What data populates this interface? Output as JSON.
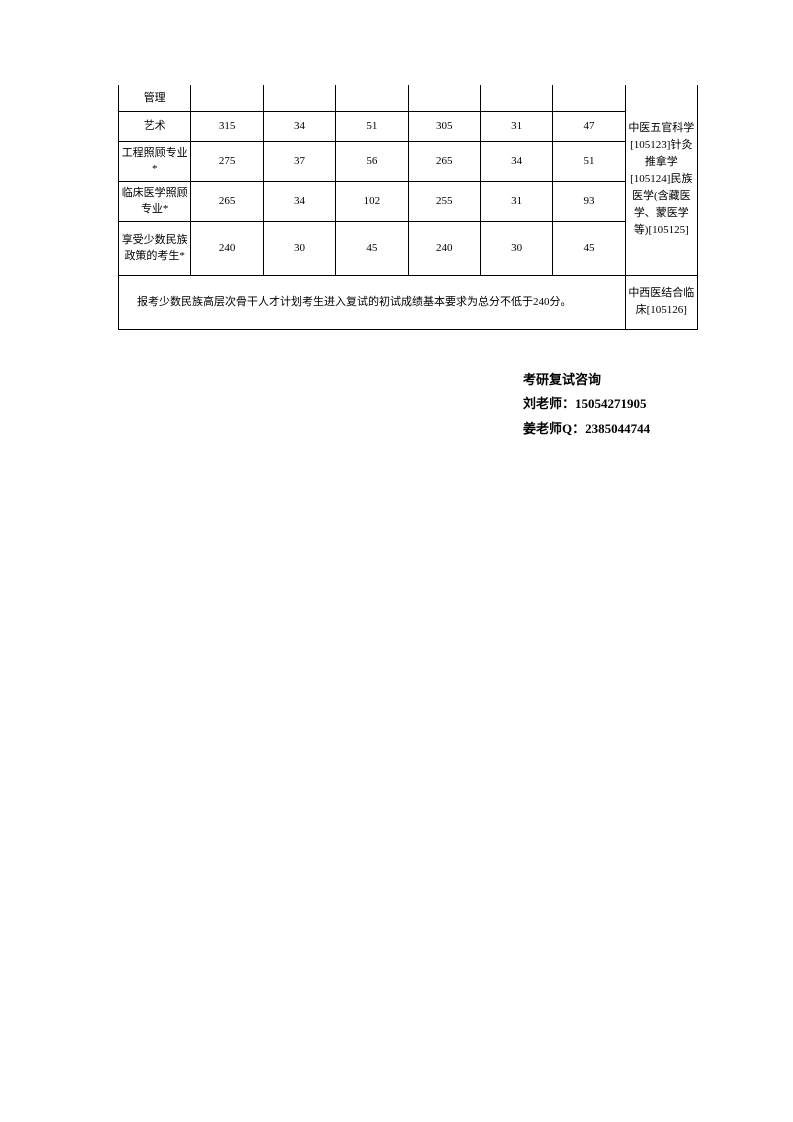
{
  "table": {
    "rows": [
      {
        "label": "管理",
        "c1": "",
        "c2": "",
        "c3": "",
        "c4": "",
        "c5": "",
        "c6": ""
      },
      {
        "label": "艺术",
        "c1": "315",
        "c2": "34",
        "c3": "51",
        "c4": "305",
        "c5": "31",
        "c6": "47"
      },
      {
        "label": "工程照顾专业*",
        "c1": "275",
        "c2": "37",
        "c3": "56",
        "c4": "265",
        "c5": "34",
        "c6": "51"
      },
      {
        "label": "临床医学照顾专业*",
        "c1": "265",
        "c2": "34",
        "c3": "102",
        "c4": "255",
        "c5": "31",
        "c6": "93"
      },
      {
        "label": "享受少数民族政策的考生*",
        "c1": "240",
        "c2": "30",
        "c3": "45",
        "c4": "240",
        "c5": "30",
        "c6": "45"
      }
    ],
    "remark_top": "中医五官科学[105123]针灸推拿学[105124]民族医学(含藏医学、蒙医学等)[105125]",
    "remark_bottom": "中西医结合临床[105126]",
    "footnote": "报考少数民族高层次骨干人才计划考生进入复试的初试成绩基本要求为总分不低于240分。"
  },
  "contact": {
    "title": "考研复试咨询",
    "line1": "刘老师：15054271905",
    "line2": "姜老师Q：2385044744"
  }
}
